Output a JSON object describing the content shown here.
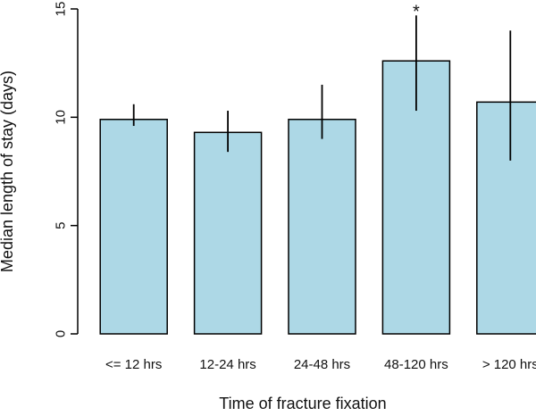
{
  "chart_data": {
    "type": "bar",
    "title": "",
    "xlabel": "Time of fracture fixation",
    "ylabel": "Median length of stay (days)",
    "ylim": [
      0,
      15
    ],
    "yticks": [
      0,
      5,
      10,
      15
    ],
    "categories": [
      "<= 12 hrs",
      "12-24 hrs",
      "24-48 hrs",
      "48-120 hrs",
      "> 120 hrs"
    ],
    "values": [
      9.9,
      9.3,
      9.9,
      12.6,
      10.7
    ],
    "error_low": [
      9.6,
      8.4,
      9.0,
      10.3,
      8.0
    ],
    "error_high": [
      10.6,
      10.3,
      11.5,
      14.7,
      14.0
    ],
    "annotations": [
      {
        "category": "48-120 hrs",
        "text": "*"
      }
    ],
    "bar_color": "#add8e6",
    "edge_color": "#000000",
    "grid": false,
    "legend": "none"
  }
}
